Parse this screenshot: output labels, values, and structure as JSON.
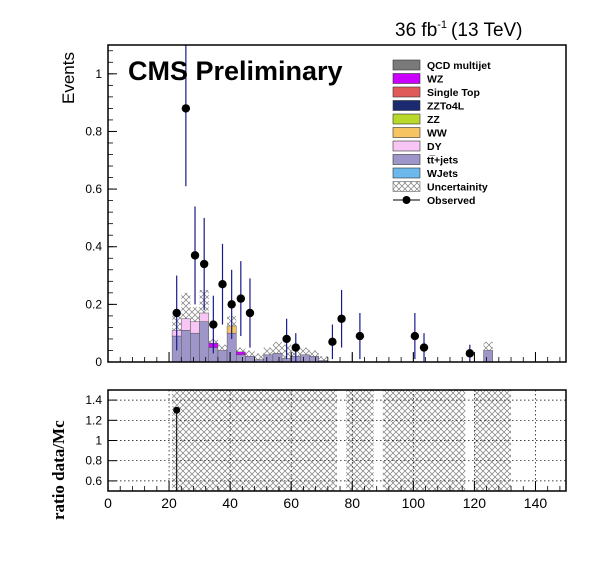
{
  "chart_data": [
    {
      "type": "bar",
      "subtype": "stacked-histogram-with-data-points",
      "header": {
        "lumi_value": "36 fb",
        "lumi_exp": "-1",
        "energy": "(13 TeV)"
      },
      "title": "CMS Preliminary",
      "ylabel": "Events",
      "xlabel": "",
      "xlim": [
        0,
        150
      ],
      "ylim": [
        0,
        1.1
      ],
      "yticks": [
        0,
        0.2,
        0.4,
        0.6,
        0.8,
        1
      ],
      "xticks": [
        0,
        20,
        40,
        60,
        80,
        100,
        120,
        140
      ],
      "legend_position": "top-right",
      "legend": [
        {
          "label": "QCD multijet",
          "color": "#7a7a7a",
          "kind": "fill"
        },
        {
          "label": "WZ",
          "color": "#cc00ff",
          "kind": "fill"
        },
        {
          "label": "Single Top",
          "color": "#e05a5a",
          "kind": "fill"
        },
        {
          "label": "ZZTo4L",
          "color": "#1b2a6e",
          "kind": "fill"
        },
        {
          "label": "ZZ",
          "color": "#b8d82a",
          "kind": "fill"
        },
        {
          "label": "WW",
          "color": "#f7c462",
          "kind": "fill"
        },
        {
          "label": "DY",
          "color": "#f7c6f5",
          "kind": "fill"
        },
        {
          "label": "tt̅+jets",
          "color": "#9e96c8",
          "kind": "fill"
        },
        {
          "label": "WJets",
          "color": "#6cb8ea",
          "kind": "fill"
        },
        {
          "label": "Uncertainity",
          "color": "#888888",
          "kind": "hatch"
        },
        {
          "label": "Observed",
          "color": "#000000",
          "kind": "marker"
        }
      ],
      "bin_width": 3,
      "stack_bins": [
        {
          "x": 21,
          "ttjets": 0.09,
          "dy": 0.02,
          "ww": 0.0,
          "wz": 0.0
        },
        {
          "x": 24,
          "ttjets": 0.11,
          "dy": 0.04,
          "ww": 0.0,
          "wz": 0.0
        },
        {
          "x": 27,
          "ttjets": 0.1,
          "dy": 0.04,
          "ww": 0.0,
          "wz": 0.0
        },
        {
          "x": 30,
          "ttjets": 0.14,
          "dy": 0.03,
          "ww": 0.0,
          "wz": 0.0
        },
        {
          "x": 33,
          "ttjets": 0.05,
          "dy": 0.0,
          "ww": 0.0,
          "wz": 0.015
        },
        {
          "x": 36,
          "ttjets": 0.04,
          "dy": 0.0,
          "ww": 0.0,
          "wz": 0.0
        },
        {
          "x": 39,
          "ttjets": 0.1,
          "dy": 0.0,
          "ww": 0.025,
          "wz": 0.0
        },
        {
          "x": 42,
          "ttjets": 0.025,
          "dy": 0.0,
          "ww": 0.0,
          "wz": 0.01
        },
        {
          "x": 45,
          "ttjets": 0.02,
          "dy": 0.0,
          "ww": 0.0,
          "wz": 0.0
        },
        {
          "x": 48,
          "ttjets": 0.008,
          "dy": 0.0,
          "ww": 0.0,
          "wz": 0.0
        },
        {
          "x": 51,
          "ttjets": 0.025,
          "dy": 0.0,
          "ww": 0.0,
          "wz": 0.0
        },
        {
          "x": 54,
          "ttjets": 0.03,
          "dy": 0.0,
          "ww": 0.0,
          "wz": 0.0
        },
        {
          "x": 57,
          "ttjets": 0.012,
          "dy": 0.0,
          "ww": 0.0,
          "wz": 0.0
        },
        {
          "x": 60,
          "ttjets": 0.02,
          "dy": 0.0,
          "ww": 0.0,
          "wz": 0.0
        },
        {
          "x": 63,
          "ttjets": 0.025,
          "dy": 0.0,
          "ww": 0.0,
          "wz": 0.0
        },
        {
          "x": 66,
          "ttjets": 0.02,
          "dy": 0.0,
          "ww": 0.0,
          "wz": 0.0
        },
        {
          "x": 69,
          "ttjets": 0.005,
          "dy": 0.0,
          "ww": 0.0,
          "wz": 0.0
        },
        {
          "x": 123,
          "ttjets": 0.04,
          "dy": 0.0,
          "ww": 0.0,
          "wz": 0.0
        }
      ],
      "uncertainty_bins": [
        {
          "x": 21,
          "hi": 0.16
        },
        {
          "x": 24,
          "hi": 0.24
        },
        {
          "x": 27,
          "hi": 0.19
        },
        {
          "x": 30,
          "hi": 0.25
        },
        {
          "x": 33,
          "hi": 0.08
        },
        {
          "x": 36,
          "hi": 0.06
        },
        {
          "x": 39,
          "hi": 0.16
        },
        {
          "x": 42,
          "hi": 0.05
        },
        {
          "x": 45,
          "hi": 0.04
        },
        {
          "x": 48,
          "hi": 0.03
        },
        {
          "x": 51,
          "hi": 0.05
        },
        {
          "x": 54,
          "hi": 0.07
        },
        {
          "x": 57,
          "hi": 0.06
        },
        {
          "x": 60,
          "hi": 0.05
        },
        {
          "x": 63,
          "hi": 0.05
        },
        {
          "x": 66,
          "hi": 0.04
        },
        {
          "x": 69,
          "hi": 0.02
        },
        {
          "x": 123,
          "hi": 0.07
        }
      ],
      "observed": [
        {
          "x": 22.5,
          "y": 0.17,
          "err": 0.13
        },
        {
          "x": 25.5,
          "y": 0.88,
          "err": 0.27
        },
        {
          "x": 28.5,
          "y": 0.37,
          "err": 0.17
        },
        {
          "x": 31.5,
          "y": 0.34,
          "err": 0.16
        },
        {
          "x": 34.5,
          "y": 0.13,
          "err": 0.1
        },
        {
          "x": 37.5,
          "y": 0.27,
          "err": 0.14
        },
        {
          "x": 40.5,
          "y": 0.2,
          "err": 0.12
        },
        {
          "x": 43.5,
          "y": 0.22,
          "err": 0.13
        },
        {
          "x": 46.5,
          "y": 0.17,
          "err": 0.12
        },
        {
          "x": 58.5,
          "y": 0.08,
          "err": 0.07
        },
        {
          "x": 61.5,
          "y": 0.05,
          "err": 0.05
        },
        {
          "x": 73.5,
          "y": 0.07,
          "err": 0.06
        },
        {
          "x": 76.5,
          "y": 0.15,
          "err": 0.1
        },
        {
          "x": 82.5,
          "y": 0.09,
          "err": 0.08
        },
        {
          "x": 100.5,
          "y": 0.09,
          "err": 0.08
        },
        {
          "x": 103.5,
          "y": 0.05,
          "err": 0.05
        },
        {
          "x": 118.5,
          "y": 0.03,
          "err": 0.03
        }
      ]
    },
    {
      "type": "scatter",
      "subtype": "ratio-panel",
      "ylabel": "ratio data/Mc",
      "xlabel": "",
      "xlim": [
        0,
        150
      ],
      "ylim": [
        0.5,
        1.5
      ],
      "yticks": [
        0.6,
        0.8,
        1,
        1.2,
        1.4
      ],
      "xticks": [
        0,
        20,
        40,
        60,
        80,
        100,
        120,
        140
      ],
      "grid": true,
      "uncertainty_band": [
        {
          "from": 21,
          "to": 75
        },
        {
          "from": 78,
          "to": 87
        },
        {
          "from": 90,
          "to": 117
        },
        {
          "from": 120,
          "to": 132
        }
      ],
      "points": [
        {
          "x": 22.5,
          "y": 1.3,
          "err_low": 1.0
        }
      ]
    }
  ]
}
